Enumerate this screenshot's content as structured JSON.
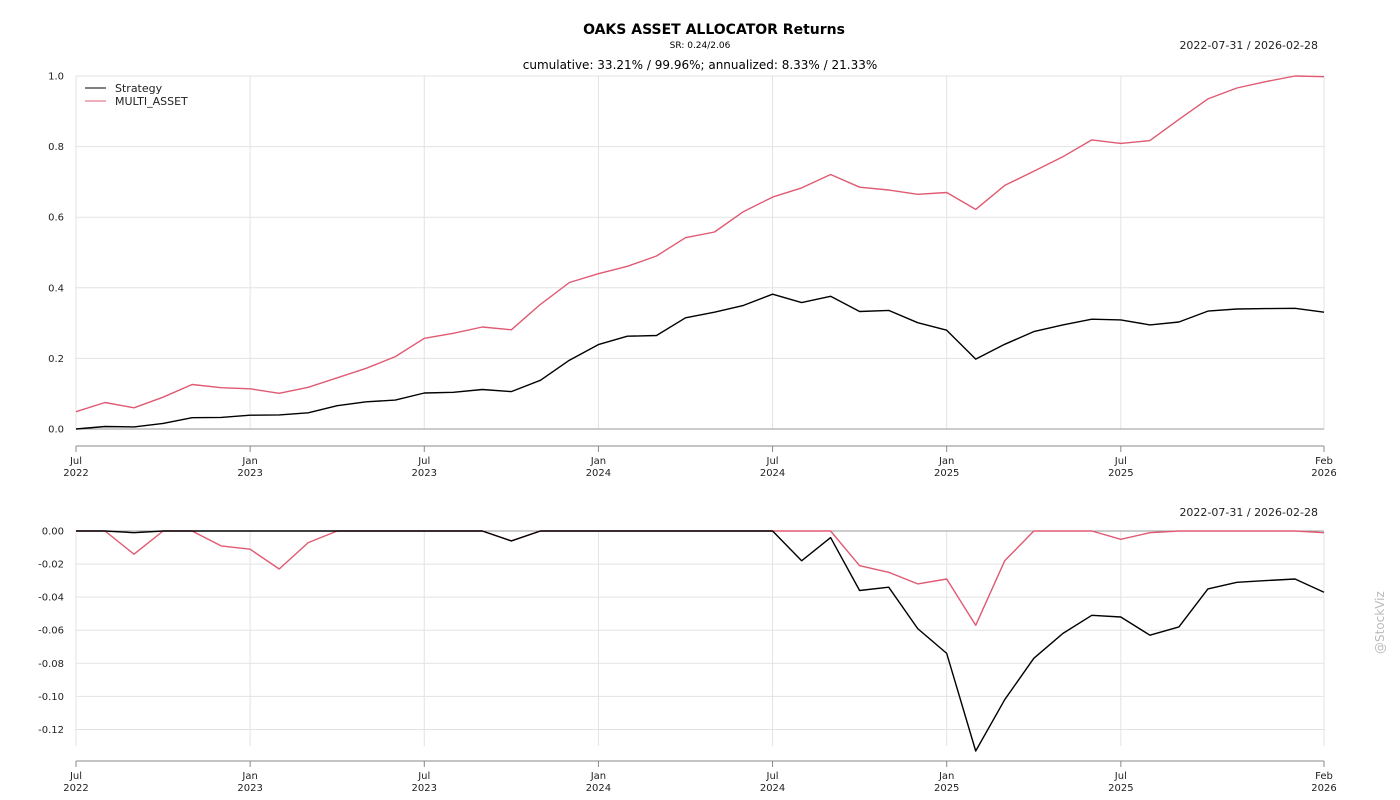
{
  "header": {
    "title": "OAKS ASSET ALLOCATOR Returns",
    "subtitle": "SR: 0.24/2.06",
    "stats": "cumulative: 33.21% / 99.96%; annualized: 8.33% / 21.33%",
    "date_range_top": "2022-07-31 / 2026-02-28",
    "date_range_bottom": "2022-07-31 / 2026-02-28"
  },
  "watermark": "@StockViz",
  "colors": {
    "strategy": "#000000",
    "benchmark": "#e05a72"
  },
  "chart_data": [
    {
      "type": "line",
      "title": "OAKS ASSET ALLOCATOR Returns",
      "legend_position": "top-left",
      "grid": true,
      "x_ticks": [
        {
          "pos": 0,
          "label": [
            "Jul",
            "2022"
          ]
        },
        {
          "pos": 6,
          "label": [
            "Jan",
            "2023"
          ]
        },
        {
          "pos": 12,
          "label": [
            "Jul",
            "2023"
          ]
        },
        {
          "pos": 18,
          "label": [
            "Jan",
            "2024"
          ]
        },
        {
          "pos": 24,
          "label": [
            "Jul",
            "2024"
          ]
        },
        {
          "pos": 30,
          "label": [
            "Jan",
            "2025"
          ]
        },
        {
          "pos": 36,
          "label": [
            "Jul",
            "2025"
          ]
        },
        {
          "pos": 43,
          "label": [
            "Feb",
            "2026"
          ]
        }
      ],
      "xlim": [
        0,
        43
      ],
      "ylim": [
        0,
        1.0
      ],
      "y_ticks": [
        "0.0",
        "0.2",
        "0.4",
        "0.6",
        "0.8",
        "1.0"
      ],
      "y_tick_values": [
        0,
        0.2,
        0.4,
        0.6,
        0.8,
        1.0
      ],
      "x": [
        0,
        1,
        2,
        3,
        4,
        5,
        6,
        7,
        8,
        9,
        10,
        11,
        12,
        13,
        14,
        15,
        16,
        17,
        18,
        19,
        20,
        21,
        22,
        23,
        24,
        25,
        26,
        27,
        28,
        29,
        30,
        31,
        32,
        33,
        34,
        35,
        36,
        37,
        38,
        39,
        40,
        41,
        42,
        43
      ],
      "series": [
        {
          "name": "Strategy",
          "values": [
            0.0,
            0.007,
            0.006,
            0.016,
            0.032,
            0.033,
            0.039,
            0.04,
            0.046,
            0.066,
            0.077,
            0.082,
            0.102,
            0.104,
            0.112,
            0.106,
            0.138,
            0.195,
            0.239,
            0.263,
            0.265,
            0.315,
            0.331,
            0.35,
            0.382,
            0.358,
            0.376,
            0.333,
            0.336,
            0.301,
            0.28,
            0.198,
            0.24,
            0.276,
            0.295,
            0.311,
            0.309,
            0.295,
            0.303,
            0.334,
            0.34,
            0.341,
            0.342,
            0.331
          ]
        },
        {
          "name": "MULTI_ASSET",
          "values": [
            0.049,
            0.075,
            0.06,
            0.09,
            0.126,
            0.117,
            0.114,
            0.101,
            0.118,
            0.145,
            0.172,
            0.205,
            0.257,
            0.271,
            0.289,
            0.281,
            0.353,
            0.415,
            0.44,
            0.461,
            0.49,
            0.542,
            0.558,
            0.616,
            0.657,
            0.683,
            0.721,
            0.685,
            0.677,
            0.665,
            0.67,
            0.622,
            0.69,
            0.73,
            0.771,
            0.819,
            0.809,
            0.817,
            0.877,
            0.935,
            0.966,
            0.984,
            1.0,
            0.998
          ]
        }
      ]
    },
    {
      "type": "line",
      "grid": true,
      "x_ticks": [
        {
          "pos": 0,
          "label": [
            "Jul",
            "2022"
          ]
        },
        {
          "pos": 6,
          "label": [
            "Jan",
            "2023"
          ]
        },
        {
          "pos": 12,
          "label": [
            "Jul",
            "2023"
          ]
        },
        {
          "pos": 18,
          "label": [
            "Jan",
            "2024"
          ]
        },
        {
          "pos": 24,
          "label": [
            "Jul",
            "2024"
          ]
        },
        {
          "pos": 30,
          "label": [
            "Jan",
            "2025"
          ]
        },
        {
          "pos": 36,
          "label": [
            "Jul",
            "2025"
          ]
        },
        {
          "pos": 43,
          "label": [
            "Feb",
            "2026"
          ]
        }
      ],
      "xlim": [
        0,
        43
      ],
      "ylim": [
        -0.13,
        0.0
      ],
      "y_ticks": [
        "0.00",
        "-0.02",
        "-0.04",
        "-0.06",
        "-0.08",
        "-0.10",
        "-0.12"
      ],
      "y_tick_values": [
        0,
        -0.02,
        -0.04,
        -0.06,
        -0.08,
        -0.1,
        -0.12
      ],
      "x": [
        0,
        1,
        2,
        3,
        4,
        5,
        6,
        7,
        8,
        9,
        10,
        11,
        12,
        13,
        14,
        15,
        16,
        17,
        18,
        19,
        20,
        21,
        22,
        23,
        24,
        25,
        26,
        27,
        28,
        29,
        30,
        31,
        32,
        33,
        34,
        35,
        36,
        37,
        38,
        39,
        40,
        41,
        42,
        43
      ],
      "series": [
        {
          "name": "Strategy",
          "values": [
            0,
            0,
            -0.001,
            0,
            0,
            0,
            0,
            0,
            0,
            0,
            0,
            0,
            0,
            0,
            0,
            -0.006,
            0,
            0,
            0,
            0,
            0,
            0,
            0,
            0,
            0,
            -0.018,
            -0.004,
            -0.036,
            -0.034,
            -0.059,
            -0.074,
            -0.133,
            -0.102,
            -0.077,
            -0.062,
            -0.051,
            -0.052,
            -0.063,
            -0.058,
            -0.035,
            -0.031,
            -0.03,
            -0.029,
            -0.037
          ]
        },
        {
          "name": "MULTI_ASSET",
          "values": [
            0,
            0,
            -0.014,
            0,
            0,
            -0.009,
            -0.011,
            -0.023,
            -0.007,
            0,
            0,
            0,
            0,
            0,
            0,
            -0.006,
            0,
            0,
            0,
            0,
            0,
            0,
            0,
            0,
            0,
            0,
            0,
            -0.021,
            -0.025,
            -0.032,
            -0.029,
            -0.057,
            -0.018,
            0,
            0,
            0,
            -0.005,
            -0.001,
            0,
            0,
            0,
            0,
            0,
            -0.001
          ]
        }
      ]
    }
  ]
}
